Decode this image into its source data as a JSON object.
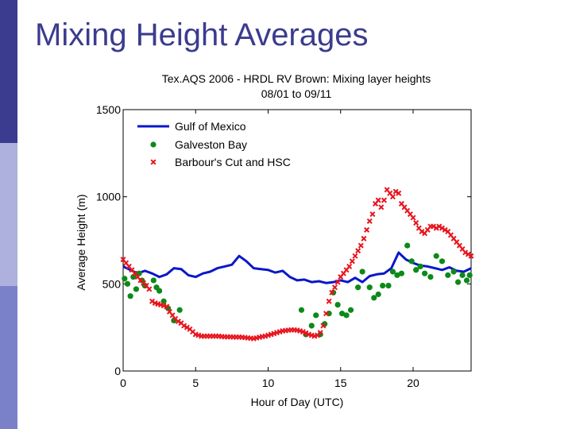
{
  "slide": {
    "title": "Mixing Height Averages",
    "sidebar_colors": [
      "#3b3b8f",
      "#aeb1dd",
      "#7b81c9"
    ]
  },
  "chart_data": {
    "type": "line+scatter",
    "title_line1": "Tex.AQS 2006 - HRDL RV Brown:  Mixing layer heights",
    "title_line2": "08/01 to 09/11",
    "xlabel": "Hour of Day (UTC)",
    "ylabel": "Average Height (m)",
    "xlim": [
      0,
      24
    ],
    "ylim": [
      0,
      1500
    ],
    "xticks": [
      0,
      5,
      10,
      15,
      20
    ],
    "yticks": [
      0,
      500,
      1000,
      1500
    ],
    "legend_position": "top-left",
    "series": [
      {
        "name": "Gulf of Mexico",
        "style": "line",
        "color": "#0a17c8",
        "x": [
          0,
          0.5,
          1,
          1.5,
          2,
          2.5,
          3,
          3.5,
          4,
          4.5,
          5,
          5.5,
          6,
          6.5,
          7,
          7.5,
          8,
          8.5,
          9,
          9.5,
          10,
          10.5,
          11,
          11.5,
          12,
          12.5,
          13,
          13.5,
          14,
          14.5,
          15,
          15.5,
          16,
          16.5,
          17,
          17.5,
          18,
          18.5,
          19,
          19.5,
          20,
          20.5,
          21,
          21.5,
          22,
          22.5,
          23,
          23.5,
          24
        ],
        "y": [
          600,
          580,
          560,
          575,
          560,
          540,
          555,
          590,
          585,
          550,
          540,
          560,
          570,
          590,
          600,
          610,
          660,
          630,
          590,
          585,
          580,
          565,
          575,
          540,
          520,
          525,
          510,
          515,
          505,
          510,
          520,
          510,
          535,
          510,
          545,
          555,
          560,
          590,
          680,
          640,
          620,
          605,
          600,
          590,
          580,
          595,
          575,
          570,
          590
        ]
      },
      {
        "name": "Galveston Bay",
        "style": "scatter",
        "marker": "dot",
        "color": "#0b8a18",
        "x": [
          0.1,
          0.3,
          0.5,
          0.7,
          0.9,
          1.1,
          1.3,
          1.5,
          2.1,
          2.3,
          2.5,
          2.8,
          3.1,
          3.5,
          3.9,
          12.3,
          12.6,
          13,
          13.3,
          13.6,
          13.9,
          14.2,
          14.5,
          14.8,
          15.1,
          15.4,
          15.7,
          16.2,
          16.5,
          17,
          17.3,
          17.6,
          17.9,
          18.3,
          18.6,
          18.9,
          19.2,
          19.6,
          19.9,
          20.2,
          20.5,
          20.8,
          21.2,
          21.6,
          22,
          22.4,
          22.8,
          23.1,
          23.4,
          23.7,
          23.9
        ],
        "y": [
          530,
          500,
          430,
          540,
          470,
          560,
          520,
          490,
          520,
          480,
          460,
          400,
          360,
          290,
          350,
          350,
          210,
          260,
          320,
          210,
          270,
          330,
          450,
          380,
          330,
          320,
          350,
          480,
          570,
          480,
          420,
          440,
          490,
          490,
          570,
          550,
          560,
          720,
          630,
          580,
          600,
          560,
          540,
          660,
          630,
          550,
          570,
          510,
          550,
          520,
          550
        ]
      },
      {
        "name": "Barbour's Cut and HSC",
        "style": "scatter",
        "marker": "x",
        "color": "#e8141d",
        "x": [
          0,
          0.2,
          0.4,
          0.6,
          0.8,
          1,
          1.2,
          1.4,
          1.6,
          1.8,
          2,
          2.2,
          2.4,
          2.6,
          2.8,
          3,
          3.2,
          3.4,
          3.6,
          3.8,
          4,
          4.2,
          4.4,
          4.6,
          4.8,
          5,
          5.2,
          5.4,
          5.6,
          5.8,
          6,
          6.2,
          6.4,
          6.6,
          6.8,
          7,
          7.2,
          7.4,
          7.6,
          7.8,
          8,
          8.2,
          8.4,
          8.6,
          8.8,
          9,
          9.2,
          9.4,
          9.6,
          9.8,
          10,
          10.2,
          10.4,
          10.6,
          10.8,
          11,
          11.2,
          11.4,
          11.6,
          11.8,
          12,
          12.2,
          12.4,
          12.6,
          12.8,
          13,
          13.2,
          13.4,
          13.6,
          13.8,
          14,
          14.2,
          14.4,
          14.6,
          14.8,
          15,
          15.2,
          15.4,
          15.6,
          15.8,
          16,
          16.2,
          16.4,
          16.6,
          16.8,
          17,
          17.2,
          17.4,
          17.6,
          17.8,
          18,
          18.2,
          18.4,
          18.6,
          18.8,
          19,
          19.2,
          19.4,
          19.6,
          19.8,
          20,
          20.2,
          20.4,
          20.6,
          20.8,
          21,
          21.2,
          21.4,
          21.6,
          21.8,
          22,
          22.2,
          22.4,
          22.6,
          22.8,
          23,
          23.2,
          23.4,
          23.6,
          23.8,
          24
        ],
        "y": [
          640,
          620,
          600,
          580,
          560,
          540,
          520,
          505,
          490,
          470,
          400,
          390,
          385,
          380,
          375,
          370,
          340,
          320,
          300,
          285,
          275,
          260,
          250,
          240,
          225,
          210,
          205,
          200,
          200,
          200,
          200,
          200,
          200,
          200,
          198,
          196,
          196,
          196,
          195,
          195,
          195,
          194,
          192,
          190,
          188,
          186,
          190,
          194,
          198,
          200,
          205,
          210,
          215,
          220,
          225,
          230,
          232,
          234,
          236,
          236,
          234,
          230,
          225,
          218,
          210,
          205,
          200,
          205,
          220,
          260,
          330,
          400,
          450,
          480,
          510,
          540,
          560,
          580,
          600,
          630,
          660,
          690,
          720,
          760,
          810,
          860,
          900,
          960,
          980,
          940,
          980,
          1040,
          1020,
          1000,
          1030,
          1020,
          960,
          940,
          920,
          900,
          880,
          850,
          820,
          800,
          790,
          810,
          830,
          830,
          820,
          830,
          820,
          810,
          800,
          780,
          760,
          740,
          720,
          700,
          680,
          670,
          660
        ]
      }
    ]
  }
}
